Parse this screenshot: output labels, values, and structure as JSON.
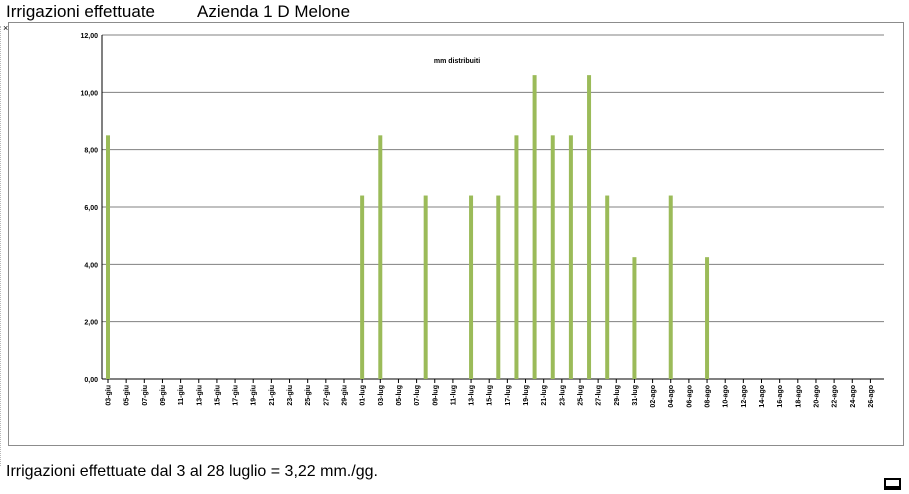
{
  "header": {
    "title": "Irrigazioni effettuate",
    "company": "Azienda 1 D Melone"
  },
  "footer": {
    "note": "Irrigazioni effettuate dal 3 al  28 luglio = 3,22 mm./gg."
  },
  "colors": {
    "bar": "#9BBB59",
    "grid": "#808080",
    "axis": "#000000"
  },
  "icons": {
    "corner": "window-restore-icon"
  },
  "chart_data": {
    "type": "bar",
    "title": "mm distribuiti",
    "xlabel": "",
    "ylabel": "",
    "ylim": [
      0,
      12
    ],
    "yticks": [
      "0,00",
      "2,00",
      "4,00",
      "6,00",
      "8,00",
      "10,00",
      "12,00"
    ],
    "grid": true,
    "legend": "none",
    "categories": [
      "03-giu",
      "05-giu",
      "07-giu",
      "09-giu",
      "11-giu",
      "13-giu",
      "15-giu",
      "17-giu",
      "19-giu",
      "21-giu",
      "23-giu",
      "25-giu",
      "27-giu",
      "29-giu",
      "01-lug",
      "03-lug",
      "05-lug",
      "07-lug",
      "09-lug",
      "11-lug",
      "13-lug",
      "15-lug",
      "17-lug",
      "19-lug",
      "21-lug",
      "23-lug",
      "25-lug",
      "27-lug",
      "29-lug",
      "31-lug",
      "02-ago",
      "04-ago",
      "06-ago",
      "08-ago",
      "10-ago",
      "12-ago",
      "14-ago",
      "16-ago",
      "18-ago",
      "20-ago",
      "22-ago",
      "24-ago",
      "26-ago"
    ],
    "bars": [
      {
        "date": "03-giu",
        "value": 8.5
      },
      {
        "date": "01-lug",
        "value": 6.4
      },
      {
        "date": "03-lug",
        "value": 8.5
      },
      {
        "date": "08-lug",
        "value": 6.4
      },
      {
        "date": "13-lug",
        "value": 6.4
      },
      {
        "date": "16-lug",
        "value": 6.4
      },
      {
        "date": "18-lug",
        "value": 8.5
      },
      {
        "date": "20-lug",
        "value": 10.6
      },
      {
        "date": "22-lug",
        "value": 8.5
      },
      {
        "date": "24-lug",
        "value": 8.5
      },
      {
        "date": "26-lug",
        "value": 10.6
      },
      {
        "date": "28-lug",
        "value": 6.4
      },
      {
        "date": "31-lug",
        "value": 4.25
      },
      {
        "date": "04-ago",
        "value": 6.4
      },
      {
        "date": "08-ago",
        "value": 4.25
      }
    ]
  }
}
